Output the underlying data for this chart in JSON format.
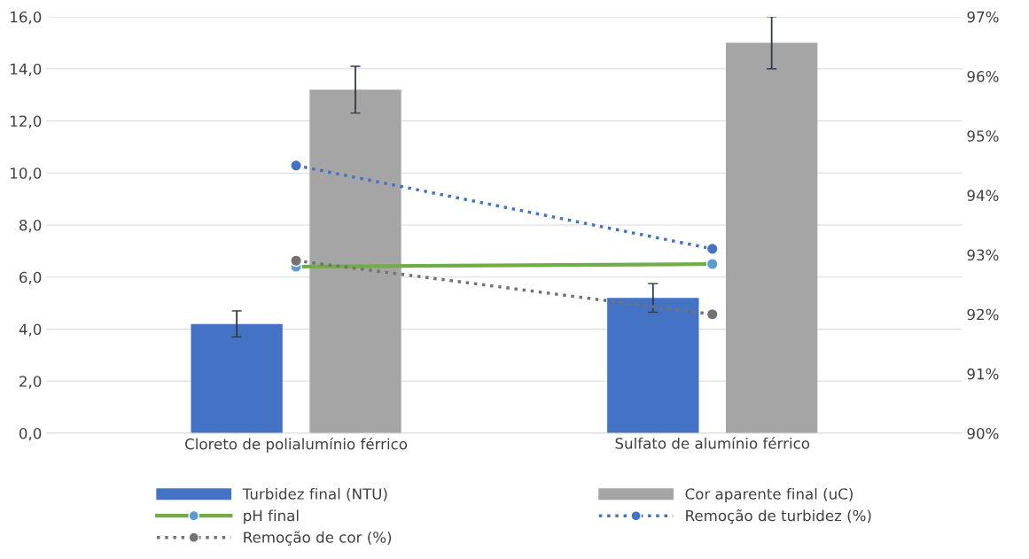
{
  "chart_data": {
    "type": "bar",
    "categories": [
      "Cloreto de polialumínio férrico",
      "Sulfato de alumínio férrico"
    ],
    "series": [
      {
        "name": "Turbidez final (NTU)",
        "color": "#4472c4",
        "values": [
          4.2,
          5.2
        ],
        "errors": [
          0.5,
          0.55
        ]
      },
      {
        "name": "Cor aparente final (uC)",
        "color": "#a5a5a5",
        "values": [
          13.2,
          15.0
        ],
        "errors": [
          0.9,
          1.0
        ]
      },
      {
        "name": "pH final",
        "type": "line",
        "color": "#70ad47",
        "values": [
          6.4,
          6.5
        ],
        "marker": "circle",
        "line_style": "solid"
      },
      {
        "name": "Remoção de turbidez (%)",
        "type": "line",
        "axis": "y2",
        "color": "#4472c4",
        "values": [
          94.5,
          93.1
        ],
        "marker": "circle",
        "line_style": "dotted"
      },
      {
        "name": "Remoção de cor (%)",
        "type": "line",
        "axis": "y2",
        "color": "#767171",
        "values": [
          92.9,
          92.0
        ],
        "marker": "circle",
        "line_style": "dotted"
      }
    ],
    "ylim": [
      0,
      16
    ],
    "yticks": [
      {
        "value": 0,
        "label": "0,0"
      },
      {
        "value": 2,
        "label": "2,0"
      },
      {
        "value": 4,
        "label": "4,0"
      },
      {
        "value": 6,
        "label": "6,0"
      },
      {
        "value": 8,
        "label": "8,0"
      },
      {
        "value": 10,
        "label": "10,0"
      },
      {
        "value": 12,
        "label": "12,0"
      },
      {
        "value": 14,
        "label": "14,0"
      },
      {
        "value": 16,
        "label": "16,0"
      }
    ],
    "y2lim": [
      90,
      97
    ],
    "y2ticks": [
      {
        "value": 90,
        "label": "90%"
      },
      {
        "value": 91,
        "label": "91%"
      },
      {
        "value": 92,
        "label": "92%"
      },
      {
        "value": 93,
        "label": "93%"
      },
      {
        "value": 94,
        "label": "94%"
      },
      {
        "value": 95,
        "label": "95%"
      },
      {
        "value": 96,
        "label": "96%"
      },
      {
        "value": 97,
        "label": "97%"
      }
    ],
    "grid": "y",
    "legend": "bottom"
  }
}
